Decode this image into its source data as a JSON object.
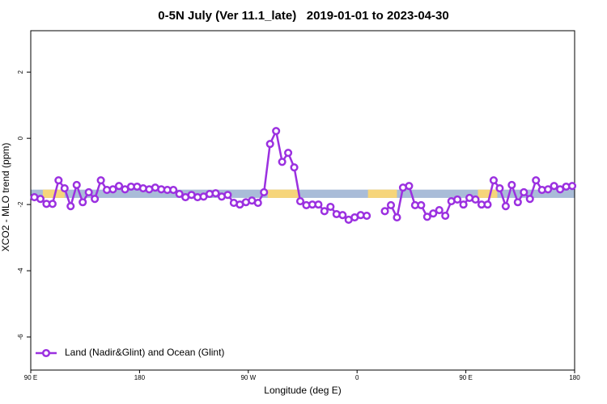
{
  "chart_data": {
    "type": "line",
    "title": "0-5N July (Ver 11.1_late)   2019-01-01 to 2023-04-30",
    "x_label": "Longitude (deg E)",
    "y_label": "XCO2 - MLO trend (ppm)",
    "xlim": [
      90,
      540
    ],
    "ylim": [
      -7,
      3.25
    ],
    "xticks": [
      {
        "value": 90,
        "label": "90 E"
      },
      {
        "value": 180,
        "label": "180"
      },
      {
        "value": 270,
        "label": "90 W"
      },
      {
        "value": 360,
        "label": "0"
      },
      {
        "value": 450,
        "label": "90 E"
      },
      {
        "value": 540,
        "label": "180"
      }
    ],
    "yticks": [
      2,
      0,
      -2,
      -4,
      -6
    ],
    "legend": "bottom-left",
    "band": {
      "ylim": [
        -1.8,
        -1.55
      ],
      "color": "#a9bcd8",
      "land_color": "#f6d57a",
      "land": [
        [
          100,
          118
        ],
        [
          286,
          312
        ],
        [
          369,
          393
        ],
        [
          460,
          476
        ]
      ]
    },
    "x": [
      93,
      98,
      103,
      108,
      113,
      118,
      123,
      128,
      133,
      138,
      143,
      148,
      153,
      158,
      163,
      168,
      173,
      178,
      183,
      188,
      193,
      198,
      203,
      208,
      213,
      218,
      223,
      228,
      233,
      238,
      243,
      248,
      253,
      258,
      263,
      268,
      273,
      278,
      283,
      288,
      293,
      298,
      303,
      308,
      313,
      318,
      323,
      328,
      333,
      338,
      343,
      348,
      353,
      358,
      363,
      368,
      373,
      378,
      383,
      388,
      393,
      398,
      403,
      408,
      413,
      418,
      423,
      428,
      433,
      438,
      443,
      448,
      453,
      458,
      463,
      468,
      473,
      478,
      483,
      488,
      493,
      498,
      503,
      508,
      513,
      518,
      523,
      528,
      533,
      538
    ],
    "series": [
      {
        "name": "Land (Nadir&Glint) and Ocean (Glint)",
        "color": "#9b30e0",
        "values": [
          -1.78,
          -1.83,
          -1.98,
          -1.98,
          -1.27,
          -1.51,
          -2.05,
          -1.41,
          -1.93,
          -1.63,
          -1.83,
          -1.27,
          -1.56,
          -1.54,
          -1.44,
          -1.54,
          -1.46,
          -1.46,
          -1.51,
          -1.54,
          -1.49,
          -1.54,
          -1.56,
          -1.56,
          -1.68,
          -1.78,
          -1.71,
          -1.78,
          -1.76,
          -1.68,
          -1.66,
          -1.76,
          -1.71,
          -1.95,
          -2.0,
          -1.93,
          -1.88,
          -1.95,
          -1.63,
          -0.17,
          0.22,
          -0.71,
          -0.44,
          -0.88,
          -1.9,
          -2.02,
          -2.0,
          -2.0,
          -2.2,
          -2.07,
          -2.29,
          -2.32,
          -2.46,
          -2.39,
          -2.32,
          -2.34,
          null,
          null,
          -2.2,
          -2.02,
          -2.39,
          -1.49,
          -1.44,
          -2.02,
          -2.02,
          -2.37,
          -2.27,
          -2.17,
          -2.34,
          -1.9,
          -1.85,
          -2.0,
          -1.8,
          -1.85,
          -2.0,
          -2.0,
          -1.27,
          -1.51,
          -2.05,
          -1.41,
          -1.93,
          -1.63,
          -1.83,
          -1.27,
          -1.56,
          -1.54,
          -1.44,
          -1.54,
          -1.46,
          -1.44
        ]
      }
    ]
  }
}
